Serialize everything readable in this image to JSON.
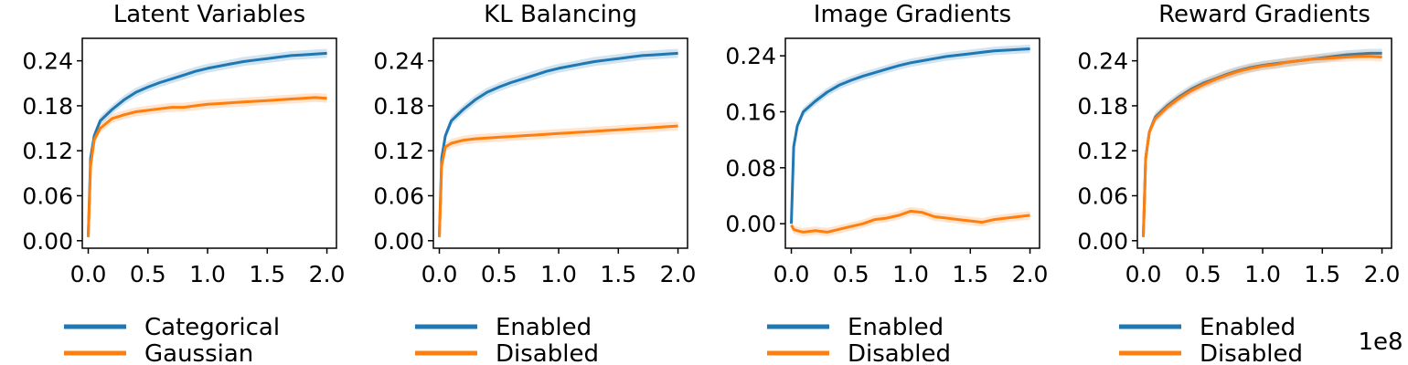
{
  "colors": {
    "series_1": "#1f77b4",
    "series_2": "#ff7f0e"
  },
  "x_scale_note": "1e8",
  "chart_data": [
    {
      "type": "line",
      "title": "Latent Variables",
      "xlabel": "",
      "ylabel": "",
      "xlim": [
        -0.05,
        2.08
      ],
      "ylim": [
        -0.01,
        0.27
      ],
      "xticks": [
        "0.0",
        "0.5",
        "1.0",
        "1.5",
        "2.0"
      ],
      "yticks": [
        "0.00",
        "0.06",
        "0.12",
        "0.18",
        "0.24"
      ],
      "legend": "below",
      "x": [
        0,
        0.02,
        0.05,
        0.1,
        0.2,
        0.3,
        0.4,
        0.5,
        0.6,
        0.7,
        0.8,
        0.9,
        1.0,
        1.1,
        1.2,
        1.3,
        1.4,
        1.5,
        1.6,
        1.7,
        1.8,
        1.9,
        2.0
      ],
      "series": [
        {
          "name": "Categorical",
          "values": [
            0.005,
            0.11,
            0.14,
            0.16,
            0.175,
            0.188,
            0.198,
            0.205,
            0.211,
            0.216,
            0.221,
            0.226,
            0.23,
            0.233,
            0.236,
            0.239,
            0.241,
            0.243,
            0.245,
            0.247,
            0.248,
            0.249,
            0.25
          ]
        },
        {
          "name": "Gaussian",
          "values": [
            0.005,
            0.1,
            0.135,
            0.15,
            0.163,
            0.168,
            0.172,
            0.174,
            0.176,
            0.178,
            0.178,
            0.18,
            0.182,
            0.183,
            0.184,
            0.185,
            0.186,
            0.187,
            0.188,
            0.189,
            0.19,
            0.191,
            0.19
          ]
        }
      ]
    },
    {
      "type": "line",
      "title": "KL Balancing",
      "xlabel": "",
      "ylabel": "",
      "xlim": [
        -0.05,
        2.08
      ],
      "ylim": [
        -0.01,
        0.27
      ],
      "xticks": [
        "0.0",
        "0.5",
        "1.0",
        "1.5",
        "2.0"
      ],
      "yticks": [
        "0.00",
        "0.06",
        "0.12",
        "0.18",
        "0.24"
      ],
      "legend": "below",
      "x": [
        0,
        0.02,
        0.05,
        0.1,
        0.2,
        0.3,
        0.4,
        0.5,
        0.6,
        0.7,
        0.8,
        0.9,
        1.0,
        1.1,
        1.2,
        1.3,
        1.4,
        1.5,
        1.6,
        1.7,
        1.8,
        1.9,
        2.0
      ],
      "series": [
        {
          "name": "Enabled",
          "values": [
            0.005,
            0.11,
            0.14,
            0.16,
            0.175,
            0.188,
            0.198,
            0.205,
            0.211,
            0.216,
            0.221,
            0.226,
            0.23,
            0.233,
            0.236,
            0.239,
            0.241,
            0.243,
            0.245,
            0.247,
            0.248,
            0.249,
            0.25
          ]
        },
        {
          "name": "Disabled",
          "values": [
            0.005,
            0.1,
            0.125,
            0.13,
            0.134,
            0.136,
            0.137,
            0.138,
            0.139,
            0.14,
            0.141,
            0.142,
            0.143,
            0.144,
            0.145,
            0.146,
            0.147,
            0.148,
            0.149,
            0.15,
            0.151,
            0.152,
            0.153
          ]
        }
      ]
    },
    {
      "type": "line",
      "title": "Image Gradients",
      "xlabel": "",
      "ylabel": "",
      "xlim": [
        -0.05,
        2.08
      ],
      "ylim": [
        -0.035,
        0.265
      ],
      "xticks": [
        "0.0",
        "0.5",
        "1.0",
        "1.5",
        "2.0"
      ],
      "yticks": [
        "0.00",
        "0.08",
        "0.16",
        "0.24"
      ],
      "legend": "below",
      "x": [
        0,
        0.02,
        0.05,
        0.1,
        0.2,
        0.3,
        0.4,
        0.5,
        0.6,
        0.7,
        0.8,
        0.9,
        1.0,
        1.1,
        1.2,
        1.3,
        1.4,
        1.5,
        1.6,
        1.7,
        1.8,
        1.9,
        2.0
      ],
      "series": [
        {
          "name": "Enabled",
          "values": [
            0.0,
            0.11,
            0.14,
            0.16,
            0.175,
            0.188,
            0.198,
            0.205,
            0.211,
            0.216,
            0.221,
            0.226,
            0.23,
            0.233,
            0.236,
            0.239,
            0.241,
            0.243,
            0.245,
            0.247,
            0.248,
            0.249,
            0.25
          ]
        },
        {
          "name": "Disabled",
          "values": [
            -0.002,
            -0.008,
            -0.01,
            -0.012,
            -0.01,
            -0.012,
            -0.008,
            -0.004,
            0.0,
            0.006,
            0.008,
            0.012,
            0.018,
            0.016,
            0.01,
            0.008,
            0.006,
            0.004,
            0.002,
            0.006,
            0.008,
            0.01,
            0.012
          ]
        }
      ]
    },
    {
      "type": "line",
      "title": "Reward Gradients",
      "xlabel": "",
      "ylabel": "",
      "xlim": [
        -0.05,
        2.08
      ],
      "ylim": [
        -0.01,
        0.27
      ],
      "xticks": [
        "0.0",
        "0.5",
        "1.0",
        "1.5",
        "2.0"
      ],
      "yticks": [
        "0.00",
        "0.06",
        "0.12",
        "0.18",
        "0.24"
      ],
      "legend": "below",
      "x": [
        0,
        0.02,
        0.05,
        0.1,
        0.2,
        0.3,
        0.4,
        0.5,
        0.6,
        0.7,
        0.8,
        0.9,
        1.0,
        1.1,
        1.2,
        1.3,
        1.4,
        1.5,
        1.6,
        1.7,
        1.8,
        1.9,
        2.0
      ],
      "series": [
        {
          "name": "Enabled",
          "values": [
            0.005,
            0.11,
            0.145,
            0.165,
            0.18,
            0.192,
            0.202,
            0.21,
            0.216,
            0.222,
            0.227,
            0.231,
            0.234,
            0.236,
            0.238,
            0.24,
            0.242,
            0.244,
            0.246,
            0.248,
            0.249,
            0.25,
            0.25
          ]
        },
        {
          "name": "Disabled",
          "values": [
            0.005,
            0.11,
            0.145,
            0.163,
            0.178,
            0.19,
            0.2,
            0.208,
            0.215,
            0.221,
            0.226,
            0.23,
            0.233,
            0.235,
            0.238,
            0.24,
            0.242,
            0.243,
            0.244,
            0.245,
            0.246,
            0.246,
            0.245
          ]
        }
      ]
    }
  ]
}
